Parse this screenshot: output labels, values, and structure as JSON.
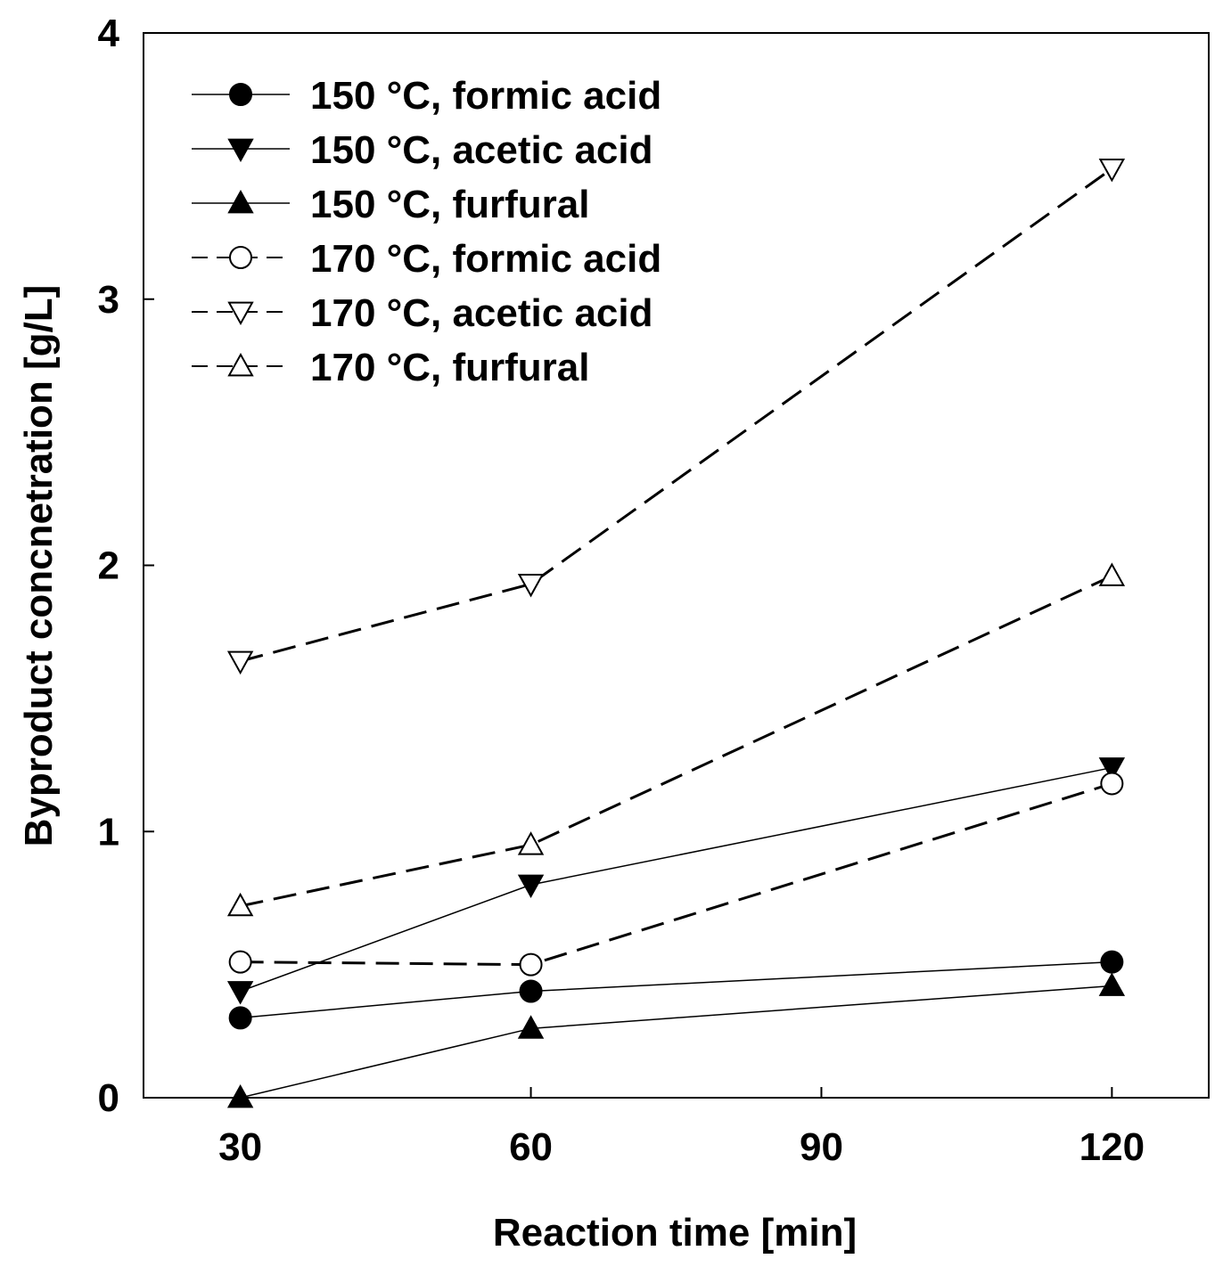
{
  "chart_data": {
    "type": "line",
    "title": "",
    "xlabel": "Reaction time [min]",
    "ylabel": "Byproduct concnetration [g/L]",
    "xlim": [
      20,
      130
    ],
    "ylim": [
      0,
      4
    ],
    "xticks": [
      30,
      60,
      90,
      120
    ],
    "yticks": [
      0,
      1,
      2,
      3,
      4
    ],
    "x": [
      30,
      60,
      120
    ],
    "grid": false,
    "legend_position": "top-left",
    "series": [
      {
        "name": "150 °C, formic acid",
        "values": [
          0.3,
          0.4,
          0.51
        ],
        "marker": "circle",
        "filled": true,
        "dash": "solid"
      },
      {
        "name": "150 °C, acetic acid",
        "values": [
          0.4,
          0.8,
          1.24
        ],
        "marker": "triangle-down",
        "filled": true,
        "dash": "solid"
      },
      {
        "name": "150 °C, furfural",
        "values": [
          0.0,
          0.26,
          0.42
        ],
        "marker": "triangle-up",
        "filled": true,
        "dash": "solid"
      },
      {
        "name": "170 °C, formic acid",
        "values": [
          0.51,
          0.5,
          1.18
        ],
        "marker": "circle",
        "filled": false,
        "dash": "dashed"
      },
      {
        "name": "170 °C, acetic acid",
        "values": [
          1.64,
          1.93,
          3.49
        ],
        "marker": "triangle-down",
        "filled": false,
        "dash": "dashed"
      },
      {
        "name": "170 °C, furfural",
        "values": [
          0.72,
          0.95,
          1.96
        ],
        "marker": "triangle-up",
        "filled": false,
        "dash": "dashed"
      }
    ]
  }
}
